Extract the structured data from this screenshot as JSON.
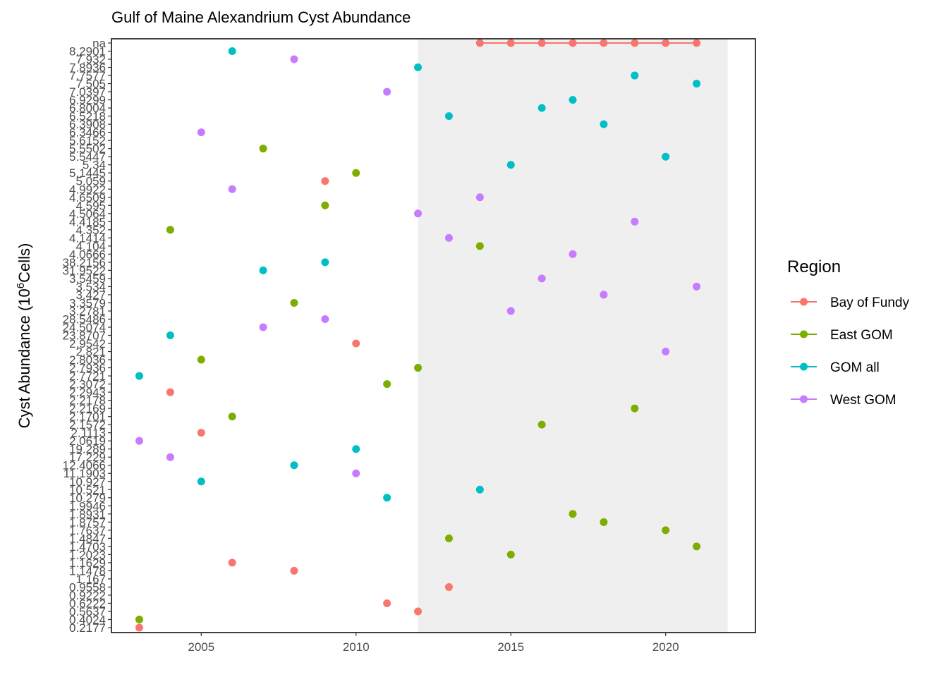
{
  "chart_data": {
    "type": "scatter",
    "title": "Gulf of Maine Alexandrium Cyst Abundance",
    "ylabel_parts": [
      "Cyst Abundance (10",
      "6",
      "Cells)"
    ],
    "xlabel": "",
    "xlim": [
      2002.1,
      2022.9
    ],
    "x_ticks": [
      2005,
      2010,
      2015,
      2020
    ],
    "shaded_region": [
      2012,
      2022
    ],
    "y_categories": [
      "0.2177",
      "0.4024",
      "0.5637",
      "0.6222",
      "0.9222",
      "0.9558",
      "1.167",
      "1.1478",
      "1.1629",
      "1.2023",
      "1.4703",
      "1.4847",
      "1.7637",
      "1.8757",
      "1.8931",
      "1.9946",
      "10.279",
      "10.521",
      "10.927",
      "11.1903",
      "12.4066",
      "17.229",
      "19.289",
      "2.0619",
      "2.1113",
      "2.1572",
      "2.1701",
      "2.2169",
      "2.2178",
      "2.2943",
      "2.3072",
      "2.7721",
      "2.7936",
      "2.8036",
      "2.821",
      "2.9542",
      "23.8707",
      "24.5074",
      "28.5486",
      "3.2781",
      "3.3579",
      "3.427",
      "3.534",
      "3.5459",
      "31.9522",
      "38.2156",
      "4.0666",
      "4.104",
      "4.1414",
      "4.352",
      "4.4185",
      "4.5064",
      "4.595",
      "4.6509",
      "4.9922",
      "5.059",
      "5.1445",
      "5.34",
      "5.5447",
      "5.5502",
      "5.6152",
      "6.3466",
      "6.3908",
      "6.5218",
      "6.8004",
      "6.9299",
      "7.0397",
      "7.505",
      "7.7577",
      "7.8936",
      "7.932",
      "8.2901",
      "na"
    ],
    "legend": {
      "title": "Region",
      "position": "right"
    },
    "series": [
      {
        "name": "Bay of Fundy",
        "color": "#F8766D",
        "line": true,
        "points": [
          [
            2003,
            "0.2177"
          ],
          [
            2004,
            "2.2943"
          ],
          [
            2005,
            "2.1113"
          ],
          [
            2006,
            "1.1629"
          ],
          [
            2008,
            "1.1478"
          ],
          [
            2009,
            "5.059"
          ],
          [
            2010,
            "2.9542"
          ],
          [
            2011,
            "0.6222"
          ],
          [
            2012,
            "0.5637"
          ],
          [
            2013,
            "0.9558"
          ],
          [
            2014,
            "na"
          ],
          [
            2015,
            "na"
          ],
          [
            2016,
            "na"
          ],
          [
            2017,
            "na"
          ],
          [
            2018,
            "na"
          ],
          [
            2019,
            "na"
          ],
          [
            2020,
            "na"
          ],
          [
            2021,
            "na"
          ]
        ]
      },
      {
        "name": "East GOM",
        "color": "#7CAE00",
        "line": false,
        "points": [
          [
            2003,
            "0.4024"
          ],
          [
            2004,
            "4.352"
          ],
          [
            2005,
            "2.8036"
          ],
          [
            2006,
            "2.1701"
          ],
          [
            2007,
            "5.5502"
          ],
          [
            2008,
            "3.3579"
          ],
          [
            2009,
            "4.595"
          ],
          [
            2010,
            "5.1445"
          ],
          [
            2011,
            "2.3072"
          ],
          [
            2012,
            "2.7936"
          ],
          [
            2013,
            "1.4847"
          ],
          [
            2014,
            "4.104"
          ],
          [
            2015,
            "1.2023"
          ],
          [
            2016,
            "2.1572"
          ],
          [
            2017,
            "1.8931"
          ],
          [
            2018,
            "1.8757"
          ],
          [
            2019,
            "2.2169"
          ],
          [
            2020,
            "1.7637"
          ],
          [
            2021,
            "1.4703"
          ]
        ]
      },
      {
        "name": "GOM all",
        "color": "#00BFC4",
        "line": false,
        "points": [
          [
            2003,
            "2.7721"
          ],
          [
            2004,
            "23.8707"
          ],
          [
            2005,
            "10.927"
          ],
          [
            2006,
            "8.2901"
          ],
          [
            2007,
            "31.9522"
          ],
          [
            2008,
            "12.4066"
          ],
          [
            2009,
            "38.2156"
          ],
          [
            2010,
            "19.289"
          ],
          [
            2011,
            "10.279"
          ],
          [
            2012,
            "7.8936"
          ],
          [
            2013,
            "6.5218"
          ],
          [
            2014,
            "10.521"
          ],
          [
            2015,
            "5.34"
          ],
          [
            2016,
            "6.8004"
          ],
          [
            2017,
            "6.9299"
          ],
          [
            2018,
            "6.3908"
          ],
          [
            2019,
            "7.7577"
          ],
          [
            2020,
            "5.5447"
          ],
          [
            2021,
            "7.505"
          ]
        ]
      },
      {
        "name": "West GOM",
        "color": "#C77CFF",
        "line": false,
        "points": [
          [
            2003,
            "2.0619"
          ],
          [
            2004,
            "17.229"
          ],
          [
            2005,
            "6.3466"
          ],
          [
            2006,
            "4.9922"
          ],
          [
            2007,
            "24.5074"
          ],
          [
            2008,
            "7.932"
          ],
          [
            2009,
            "28.5486"
          ],
          [
            2010,
            "11.1903"
          ],
          [
            2011,
            "7.0397"
          ],
          [
            2012,
            "4.5064"
          ],
          [
            2013,
            "4.1414"
          ],
          [
            2014,
            "4.6509"
          ],
          [
            2015,
            "3.2781"
          ],
          [
            2016,
            "3.5459"
          ],
          [
            2017,
            "4.0666"
          ],
          [
            2018,
            "3.427"
          ],
          [
            2019,
            "4.4185"
          ],
          [
            2020,
            "2.821"
          ],
          [
            2021,
            "3.534"
          ]
        ]
      }
    ]
  }
}
